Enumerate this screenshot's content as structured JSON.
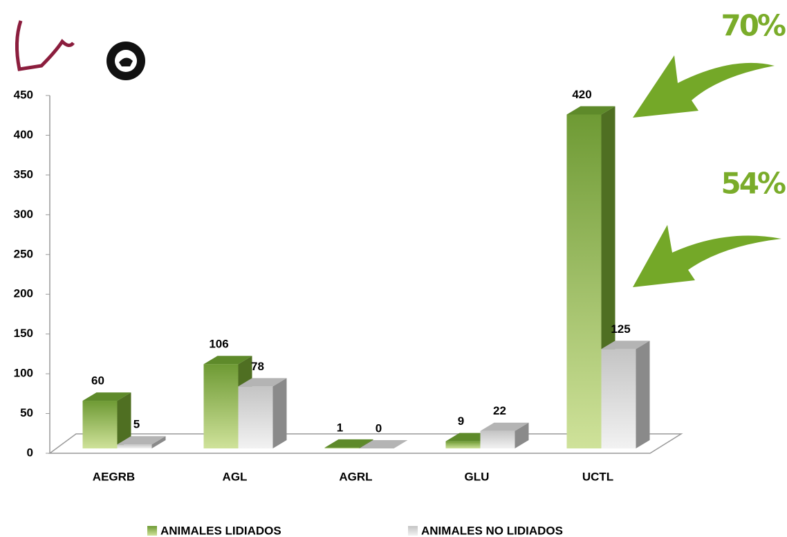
{
  "chart_data": {
    "type": "bar3d",
    "categories": [
      "AEGRB",
      "AGL",
      "AGRL",
      "GLU",
      "UCTL"
    ],
    "series": [
      {
        "name": "ANIMALES LIDIADOS",
        "color": "#6e9a34",
        "values": [
          60,
          106,
          1,
          9,
          420
        ]
      },
      {
        "name": "ANIMALES NO LIDIADOS",
        "color": "#c8c8c8",
        "values": [
          5,
          78,
          0,
          22,
          125
        ]
      }
    ],
    "ylim": [
      0,
      450
    ],
    "yticks": [
      0,
      50,
      100,
      150,
      200,
      250,
      300,
      350,
      400,
      450
    ],
    "annotations": [
      "70%",
      "54%"
    ]
  }
}
